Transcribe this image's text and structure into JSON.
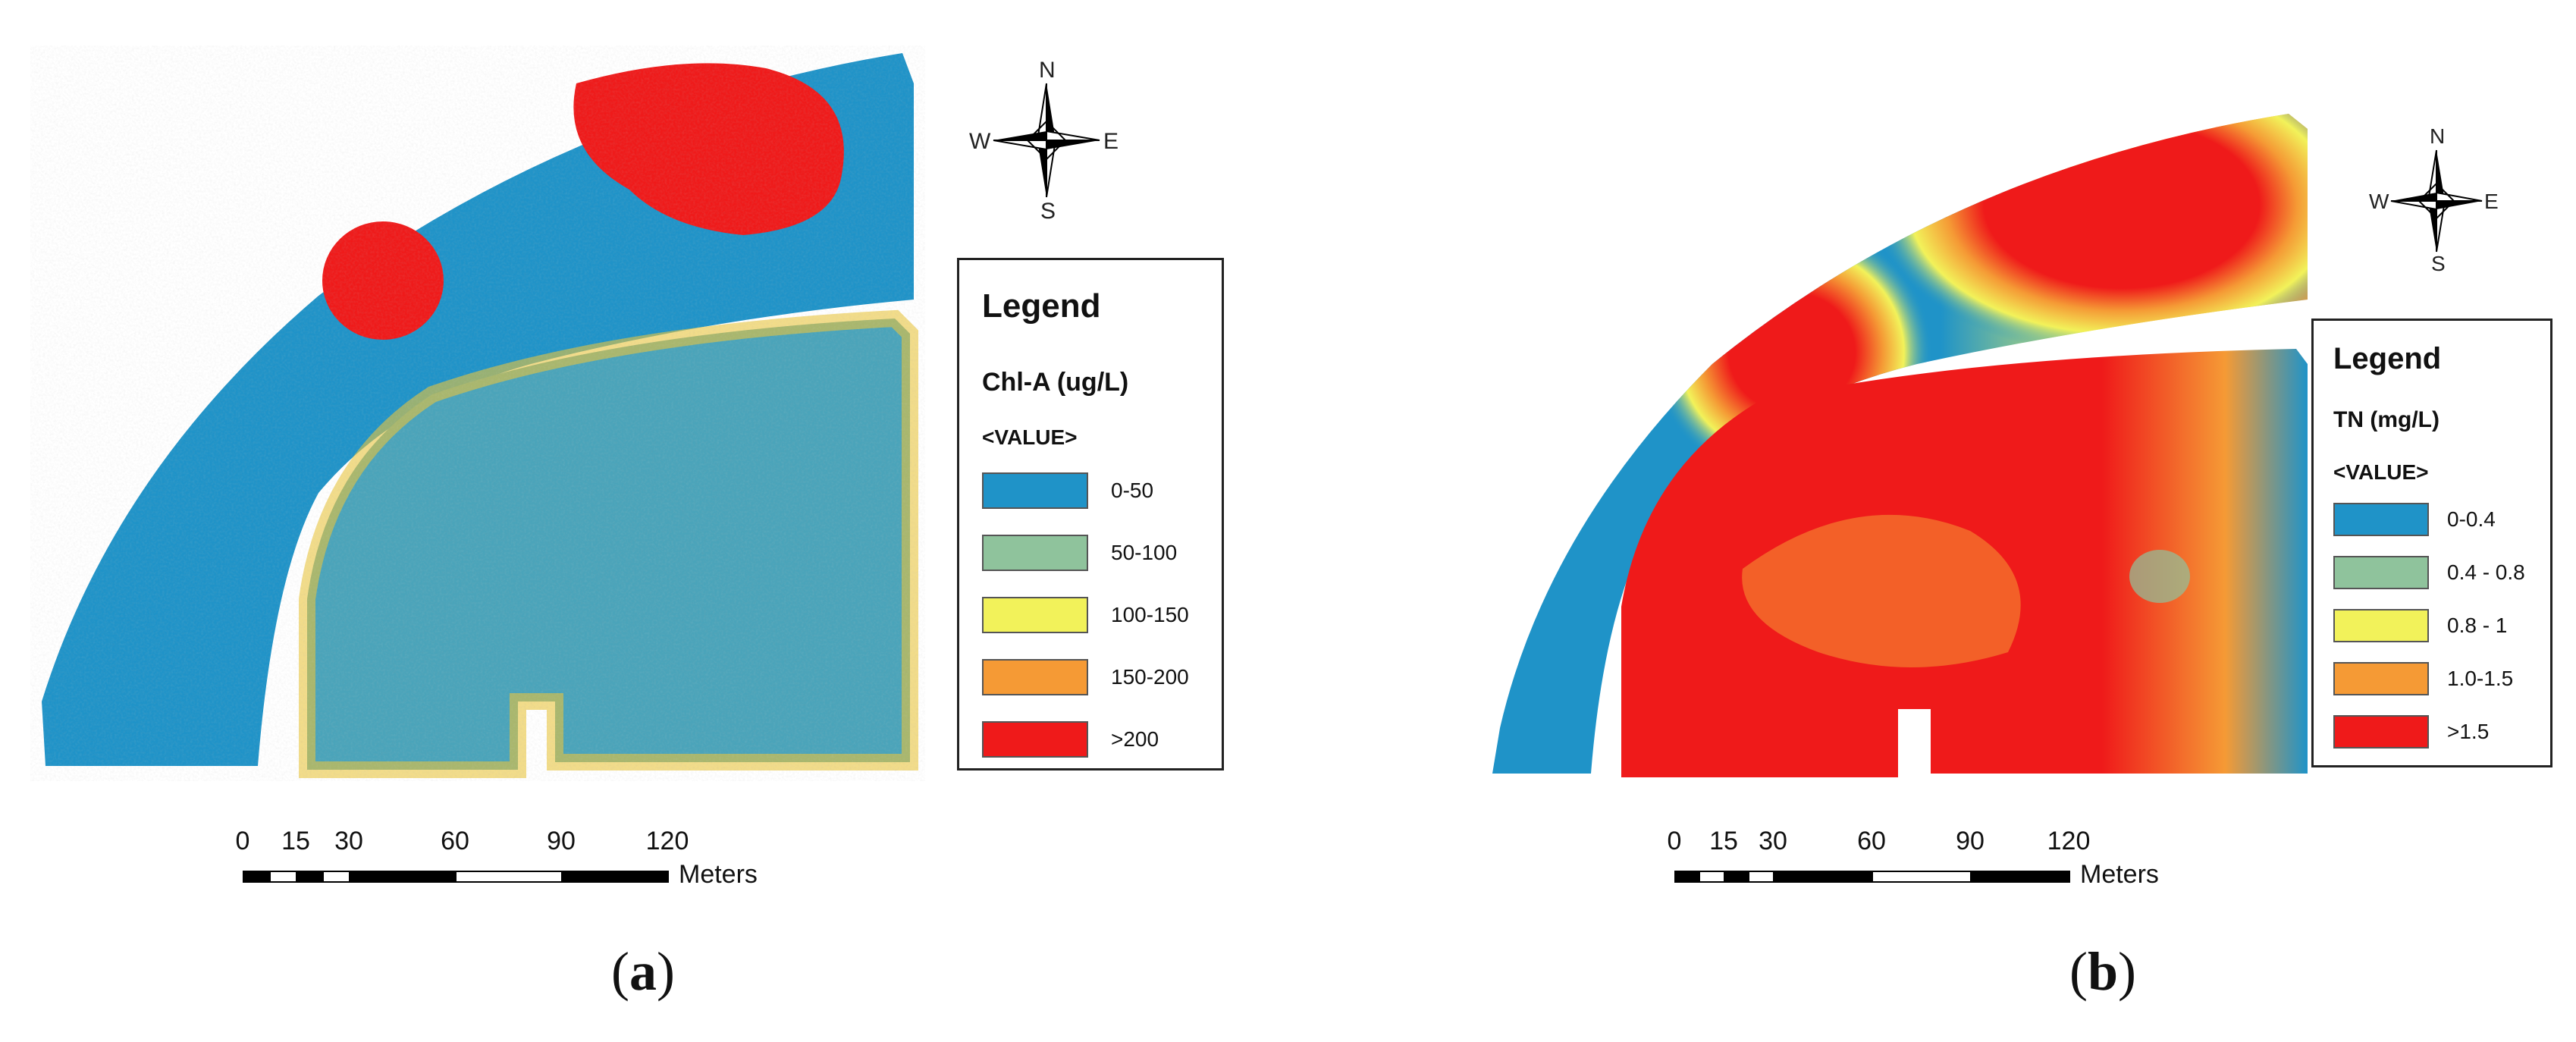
{
  "panels": [
    {
      "id": "a",
      "label_open": "(",
      "label_letter": "a",
      "label_close": ")",
      "compass": {
        "n": "N",
        "s": "S",
        "e": "E",
        "w": "W"
      },
      "legend": {
        "title": "Legend",
        "field": "Chl-A (ug/L)",
        "value": "<VALUE>",
        "classes": [
          {
            "label": "0-50",
            "color": "#1f93c8"
          },
          {
            "label": "50-100",
            "color": "#8fc39c"
          },
          {
            "label": "100-150",
            "color": "#f2f25a"
          },
          {
            "label": "150-200",
            "color": "#f59a35"
          },
          {
            "label": ">200",
            "color": "#ef1a1a"
          }
        ]
      },
      "scalebar": {
        "ticks": [
          "0",
          "15",
          "30",
          "60",
          "90",
          "120"
        ],
        "unit": "Meters"
      }
    },
    {
      "id": "b",
      "label_open": "(",
      "label_letter": "b",
      "label_close": ")",
      "compass": {
        "n": "N",
        "s": "S",
        "e": "E",
        "w": "W"
      },
      "legend": {
        "title": "Legend",
        "field": "TN (mg/L)",
        "value": "<VALUE>",
        "classes": [
          {
            "label": "0-0.4",
            "color": "#1f93c8"
          },
          {
            "label": "0.4 - 0.8",
            "color": "#8fc39c"
          },
          {
            "label": "0.8 - 1",
            "color": "#f2f25a"
          },
          {
            "label": "1.0-1.5",
            "color": "#f59a35"
          },
          {
            "label": ">1.5",
            "color": "#ef1a1a"
          }
        ]
      },
      "scalebar": {
        "ticks": [
          "0",
          "15",
          "30",
          "60",
          "90",
          "120"
        ],
        "unit": "Meters"
      }
    }
  ]
}
